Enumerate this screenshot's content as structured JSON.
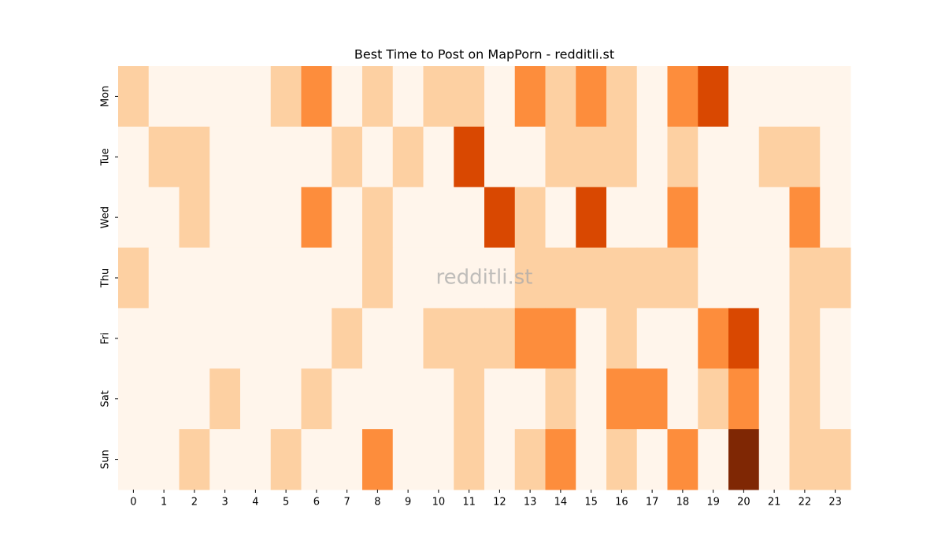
{
  "chart_data": {
    "type": "heatmap",
    "title": "Best Time to Post on MapPorn - redditli.st",
    "watermark": "redditli.st",
    "columns": [
      0,
      1,
      2,
      3,
      4,
      5,
      6,
      7,
      8,
      9,
      10,
      11,
      12,
      13,
      14,
      15,
      16,
      17,
      18,
      19,
      20,
      21,
      22,
      23
    ],
    "rows": [
      "Mon",
      "Tue",
      "Wed",
      "Thu",
      "Fri",
      "Sat",
      "Sun"
    ],
    "colors": [
      "#fff5eb",
      "#fdd0a2",
      "#fd8d3c",
      "#d94801",
      "#7f2704"
    ],
    "values": [
      [
        1,
        0,
        0,
        0,
        0,
        1,
        2,
        0,
        1,
        0,
        1,
        1,
        0,
        2,
        1,
        2,
        1,
        0,
        2,
        3,
        0,
        0,
        0,
        0
      ],
      [
        0,
        1,
        1,
        0,
        0,
        0,
        0,
        1,
        0,
        1,
        0,
        3,
        0,
        0,
        1,
        1,
        1,
        0,
        1,
        0,
        0,
        1,
        1,
        0
      ],
      [
        0,
        0,
        1,
        0,
        0,
        0,
        2,
        0,
        1,
        0,
        0,
        0,
        3,
        1,
        0,
        3,
        0,
        0,
        2,
        0,
        0,
        0,
        2,
        0
      ],
      [
        1,
        0,
        0,
        0,
        0,
        0,
        0,
        0,
        1,
        0,
        0,
        0,
        0,
        1,
        1,
        1,
        1,
        1,
        1,
        0,
        0,
        0,
        1,
        1
      ],
      [
        0,
        0,
        0,
        0,
        0,
        0,
        0,
        1,
        0,
        0,
        1,
        1,
        1,
        2,
        2,
        0,
        1,
        0,
        0,
        2,
        3,
        0,
        1,
        0
      ],
      [
        0,
        0,
        0,
        1,
        0,
        0,
        1,
        0,
        0,
        0,
        0,
        1,
        0,
        0,
        1,
        0,
        2,
        2,
        0,
        1,
        2,
        0,
        1,
        0
      ],
      [
        0,
        0,
        1,
        0,
        0,
        1,
        0,
        0,
        2,
        0,
        0,
        1,
        0,
        1,
        2,
        0,
        1,
        0,
        2,
        0,
        4,
        0,
        1,
        1
      ]
    ]
  }
}
